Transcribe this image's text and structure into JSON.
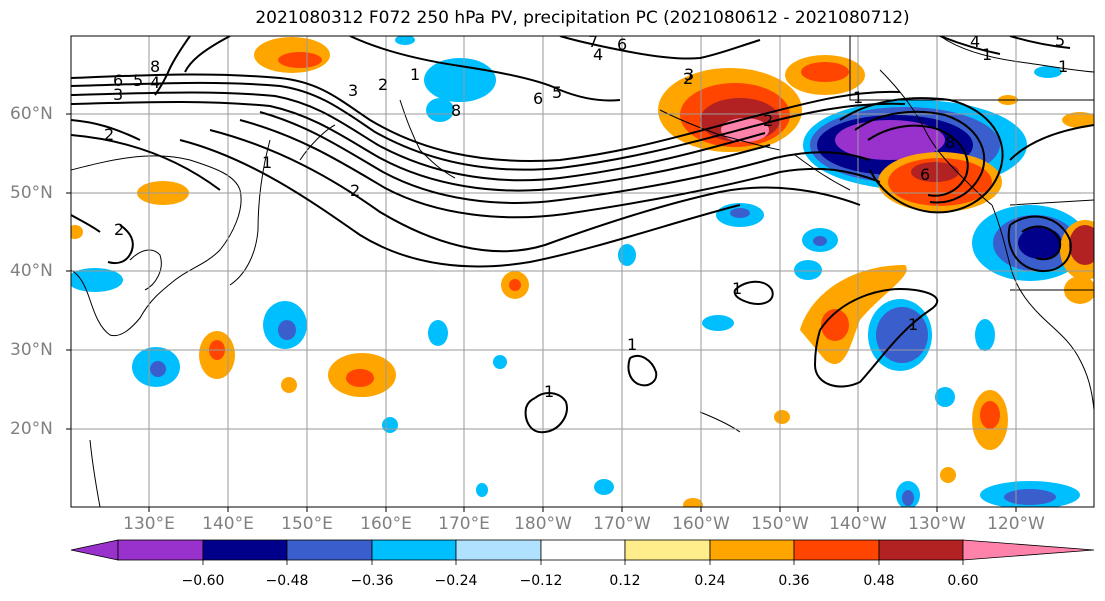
{
  "title": "2021080312 F072 250 hPa PV, precipitation PC (2021080612 - 2021080712)",
  "lat_labels": [
    "60°N",
    "50°N",
    "40°N",
    "30°N",
    "20°N"
  ],
  "lon_labels": [
    "130°E",
    "140°E",
    "150°E",
    "160°E",
    "170°E",
    "180°W",
    "170°W",
    "160°W",
    "150°W",
    "140°W",
    "130°W",
    "120°W"
  ],
  "colorbar": {
    "ticks": [
      "−0.60",
      "−0.48",
      "−0.36",
      "−0.24",
      "−0.12",
      "0.12",
      "0.24",
      "0.36",
      "0.48",
      "0.60"
    ],
    "colors": [
      "#9932CC",
      "#00008B",
      "#3A5FCD",
      "#00BFFF",
      "#B0E2FF",
      "#FFFFFF",
      "#FFEC8B",
      "#FFA500",
      "#FF4500",
      "#B22222",
      "#FF82AB"
    ]
  },
  "contour_labels": [
    "8",
    "6",
    "5",
    "4",
    "3",
    "2",
    "1",
    "2",
    "3",
    "1",
    "6",
    "5",
    "8",
    "7",
    "6",
    "4",
    "2",
    "1",
    "1",
    "1",
    "1",
    "1",
    "1",
    "1",
    "2",
    "3",
    "2",
    "8",
    "4",
    "5",
    "6",
    "2"
  ]
}
